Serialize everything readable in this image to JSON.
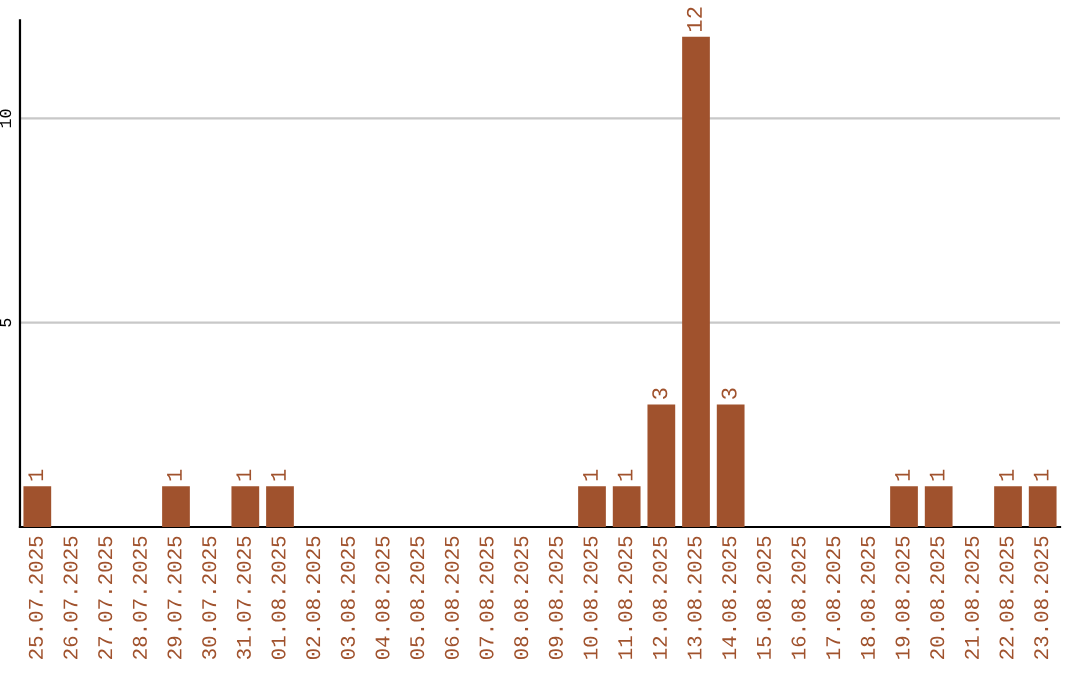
{
  "chart_data": {
    "type": "bar",
    "categories": [
      "25.07.2025",
      "26.07.2025",
      "27.07.2025",
      "28.07.2025",
      "29.07.2025",
      "30.07.2025",
      "31.07.2025",
      "01.08.2025",
      "02.08.2025",
      "03.08.2025",
      "04.08.2025",
      "05.08.2025",
      "06.08.2025",
      "07.08.2025",
      "08.08.2025",
      "09.08.2025",
      "10.08.2025",
      "11.08.2025",
      "12.08.2025",
      "13.08.2025",
      "14.08.2025",
      "15.08.2025",
      "16.08.2025",
      "17.08.2025",
      "18.08.2025",
      "19.08.2025",
      "20.08.2025",
      "21.08.2025",
      "22.08.2025",
      "23.08.2025"
    ],
    "values": [
      1,
      0,
      0,
      0,
      1,
      0,
      1,
      1,
      0,
      0,
      0,
      0,
      0,
      0,
      0,
      0,
      1,
      1,
      3,
      12,
      3,
      0,
      0,
      0,
      0,
      1,
      1,
      0,
      1,
      1
    ],
    "color": "#a0522d",
    "value_labels": [
      "1",
      null,
      null,
      null,
      "1",
      null,
      "1",
      "1",
      null,
      null,
      null,
      null,
      null,
      null,
      null,
      null,
      "1",
      "1",
      "3",
      "12",
      "3",
      null,
      null,
      null,
      null,
      "1",
      "1",
      null,
      "1",
      "1"
    ],
    "ylim": [
      0,
      12.4
    ],
    "yticks": [
      5,
      10
    ],
    "grid": "y"
  }
}
